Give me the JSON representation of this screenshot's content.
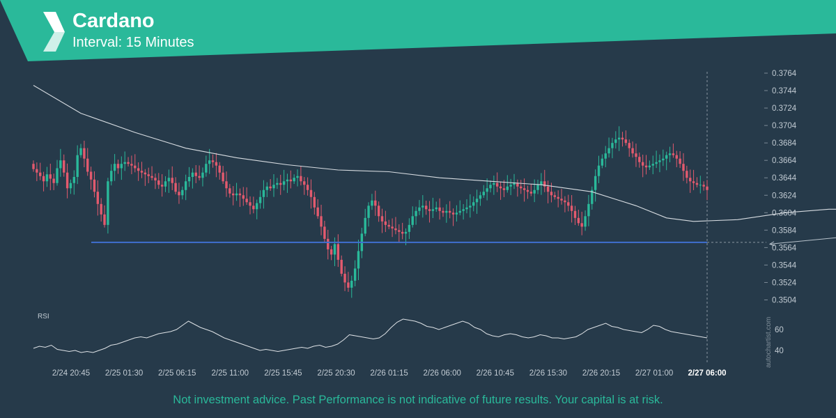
{
  "header": {
    "title": "Cardano",
    "subtitle": "Interval: 15 Minutes"
  },
  "footer": {
    "disclaimer": "Not investment advice. Past Performance is not indicative of future results. Your capital is at risk."
  },
  "watermark": "autochartist.com",
  "colors": {
    "background": "#263a4a",
    "banner": "#2ab99a",
    "up_candle": "#2ab99a",
    "down_candle": "#e35a6e",
    "moving_average": "#d8dde2",
    "support_line": "#3f6fd0",
    "rsi_line": "#dfe3e7",
    "axis_text": "#c2cbd3"
  },
  "chart_data": {
    "type": "candlestick",
    "price_axis": {
      "ticks": [
        "0.3764",
        "0.3744",
        "0.3724",
        "0.3704",
        "0.3684",
        "0.3664",
        "0.3644",
        "0.3624",
        "0.3604",
        "0.3584",
        "0.3564",
        "0.3544",
        "0.3524",
        "0.3504"
      ],
      "range": [
        0.349,
        0.377
      ]
    },
    "time_axis": {
      "ticks": [
        "2/24 20:45",
        "2/25 01:30",
        "2/25 06:15",
        "2/25 11:00",
        "2/25 15:45",
        "2/25 20:30",
        "2/26 01:15",
        "2/26 06:00",
        "2/26 10:45",
        "2/26 15:30",
        "2/26 20:15",
        "2/27 01:00",
        "2/27 06:00"
      ],
      "highlighted_tick": "2/27 06:00"
    },
    "close_series": [
      0.3654,
      0.365,
      0.3646,
      0.364,
      0.3648,
      0.3643,
      0.3638,
      0.3655,
      0.3664,
      0.365,
      0.3632,
      0.3638,
      0.3645,
      0.367,
      0.3678,
      0.3666,
      0.3651,
      0.3642,
      0.3628,
      0.3614,
      0.3602,
      0.359,
      0.364,
      0.3652,
      0.366,
      0.3655,
      0.366,
      0.3662,
      0.366,
      0.3658,
      0.3655,
      0.3652,
      0.365,
      0.3648,
      0.3646,
      0.3644,
      0.3641,
      0.3636,
      0.3634,
      0.364,
      0.3644,
      0.3638,
      0.3628,
      0.3624,
      0.363,
      0.364,
      0.3645,
      0.365,
      0.3646,
      0.3644,
      0.365,
      0.366,
      0.3664,
      0.3662,
      0.3658,
      0.365,
      0.364,
      0.3632,
      0.3626,
      0.3624,
      0.3626,
      0.3624,
      0.362,
      0.3616,
      0.3612,
      0.3608,
      0.3615,
      0.3622,
      0.363,
      0.3634,
      0.3632,
      0.3636,
      0.3638,
      0.3636,
      0.364,
      0.3642,
      0.364,
      0.3644,
      0.3646,
      0.364,
      0.3636,
      0.363,
      0.3622,
      0.361,
      0.36,
      0.3588,
      0.3574,
      0.3562,
      0.3556,
      0.3568,
      0.355,
      0.3534,
      0.3524,
      0.3518,
      0.3526,
      0.354,
      0.356,
      0.358,
      0.3598,
      0.3612,
      0.3618,
      0.3612,
      0.36,
      0.3594,
      0.359,
      0.3588,
      0.3586,
      0.3584,
      0.3582,
      0.358,
      0.3582,
      0.359,
      0.36,
      0.3606,
      0.361,
      0.3612,
      0.3608,
      0.3606,
      0.3608,
      0.361,
      0.3606,
      0.3604,
      0.3606,
      0.3604,
      0.3602,
      0.3604,
      0.3606,
      0.3608,
      0.361,
      0.3612,
      0.3616,
      0.362,
      0.3624,
      0.3628,
      0.3632,
      0.3636,
      0.3638,
      0.3634,
      0.3632,
      0.363,
      0.3634,
      0.3636,
      0.3638,
      0.3634,
      0.3632,
      0.363,
      0.3628,
      0.3626,
      0.363,
      0.3636,
      0.364,
      0.3634,
      0.3628,
      0.3624,
      0.3622,
      0.362,
      0.3618,
      0.3616,
      0.3612,
      0.3606,
      0.3598,
      0.3592,
      0.3588,
      0.36,
      0.3614,
      0.363,
      0.3646,
      0.3658,
      0.3666,
      0.3672,
      0.3678,
      0.3684,
      0.3688,
      0.369,
      0.3688,
      0.3684,
      0.3678,
      0.3672,
      0.3668,
      0.3662,
      0.3658,
      0.3656,
      0.3658,
      0.366,
      0.3662,
      0.3664,
      0.3666,
      0.367,
      0.3672,
      0.367,
      0.3666,
      0.366,
      0.3652,
      0.3644,
      0.364,
      0.3638,
      0.3636,
      0.3636,
      0.3634,
      0.363
    ],
    "moving_average": [
      [
        0,
        0.375
      ],
      [
        14,
        0.3718
      ],
      [
        30,
        0.3696
      ],
      [
        45,
        0.3678
      ],
      [
        60,
        0.3667
      ],
      [
        75,
        0.3659
      ],
      [
        90,
        0.3653
      ],
      [
        105,
        0.3651
      ],
      [
        120,
        0.3644
      ],
      [
        135,
        0.364
      ],
      [
        150,
        0.3636
      ],
      [
        165,
        0.3628
      ],
      [
        178,
        0.3612
      ],
      [
        187,
        0.3598
      ],
      [
        195,
        0.3594
      ],
      [
        208,
        0.3596
      ],
      [
        222,
        0.3604
      ],
      [
        235,
        0.3608
      ],
      [
        250,
        0.3608
      ],
      [
        260,
        0.3612
      ],
      [
        270,
        0.3619
      ],
      [
        280,
        0.3625
      ],
      [
        290,
        0.3625
      ],
      [
        300,
        0.3622
      ],
      [
        308,
        0.3616
      ],
      [
        314,
        0.3618
      ],
      [
        320,
        0.3636
      ],
      [
        330,
        0.3648
      ],
      [
        340,
        0.3656
      ],
      [
        350,
        0.3656
      ],
      [
        360,
        0.3658
      ],
      [
        368,
        0.3655
      ],
      [
        374,
        0.3652
      ]
    ],
    "support_level": 0.357,
    "forecast_line": {
      "from": [
        374,
        0.3626
      ],
      "to_price": 0.3568
    },
    "rsi": {
      "label": "RSI",
      "ticks": [
        "60",
        "40"
      ],
      "range": [
        30,
        75
      ],
      "values": [
        42,
        44,
        43,
        45,
        41,
        40,
        39,
        40,
        38,
        39,
        38,
        40,
        42,
        45,
        46,
        48,
        50,
        52,
        53,
        52,
        54,
        56,
        57,
        58,
        60,
        64,
        68,
        65,
        62,
        60,
        58,
        55,
        52,
        50,
        48,
        46,
        44,
        42,
        40,
        41,
        40,
        39,
        40,
        41,
        42,
        43,
        42,
        44,
        45,
        43,
        44,
        46,
        50,
        55,
        54,
        53,
        52,
        51,
        52,
        56,
        62,
        67,
        70,
        69,
        68,
        66,
        63,
        62,
        60,
        62,
        64,
        66,
        68,
        66,
        62,
        60,
        56,
        54,
        53,
        55,
        56,
        55,
        53,
        52,
        53,
        55,
        54,
        52,
        52,
        51,
        52,
        53,
        56,
        60,
        62,
        64,
        66,
        63,
        62,
        60,
        59,
        58,
        57,
        60,
        64,
        63,
        60,
        58,
        57,
        56,
        55,
        54,
        53,
        52
      ]
    }
  }
}
